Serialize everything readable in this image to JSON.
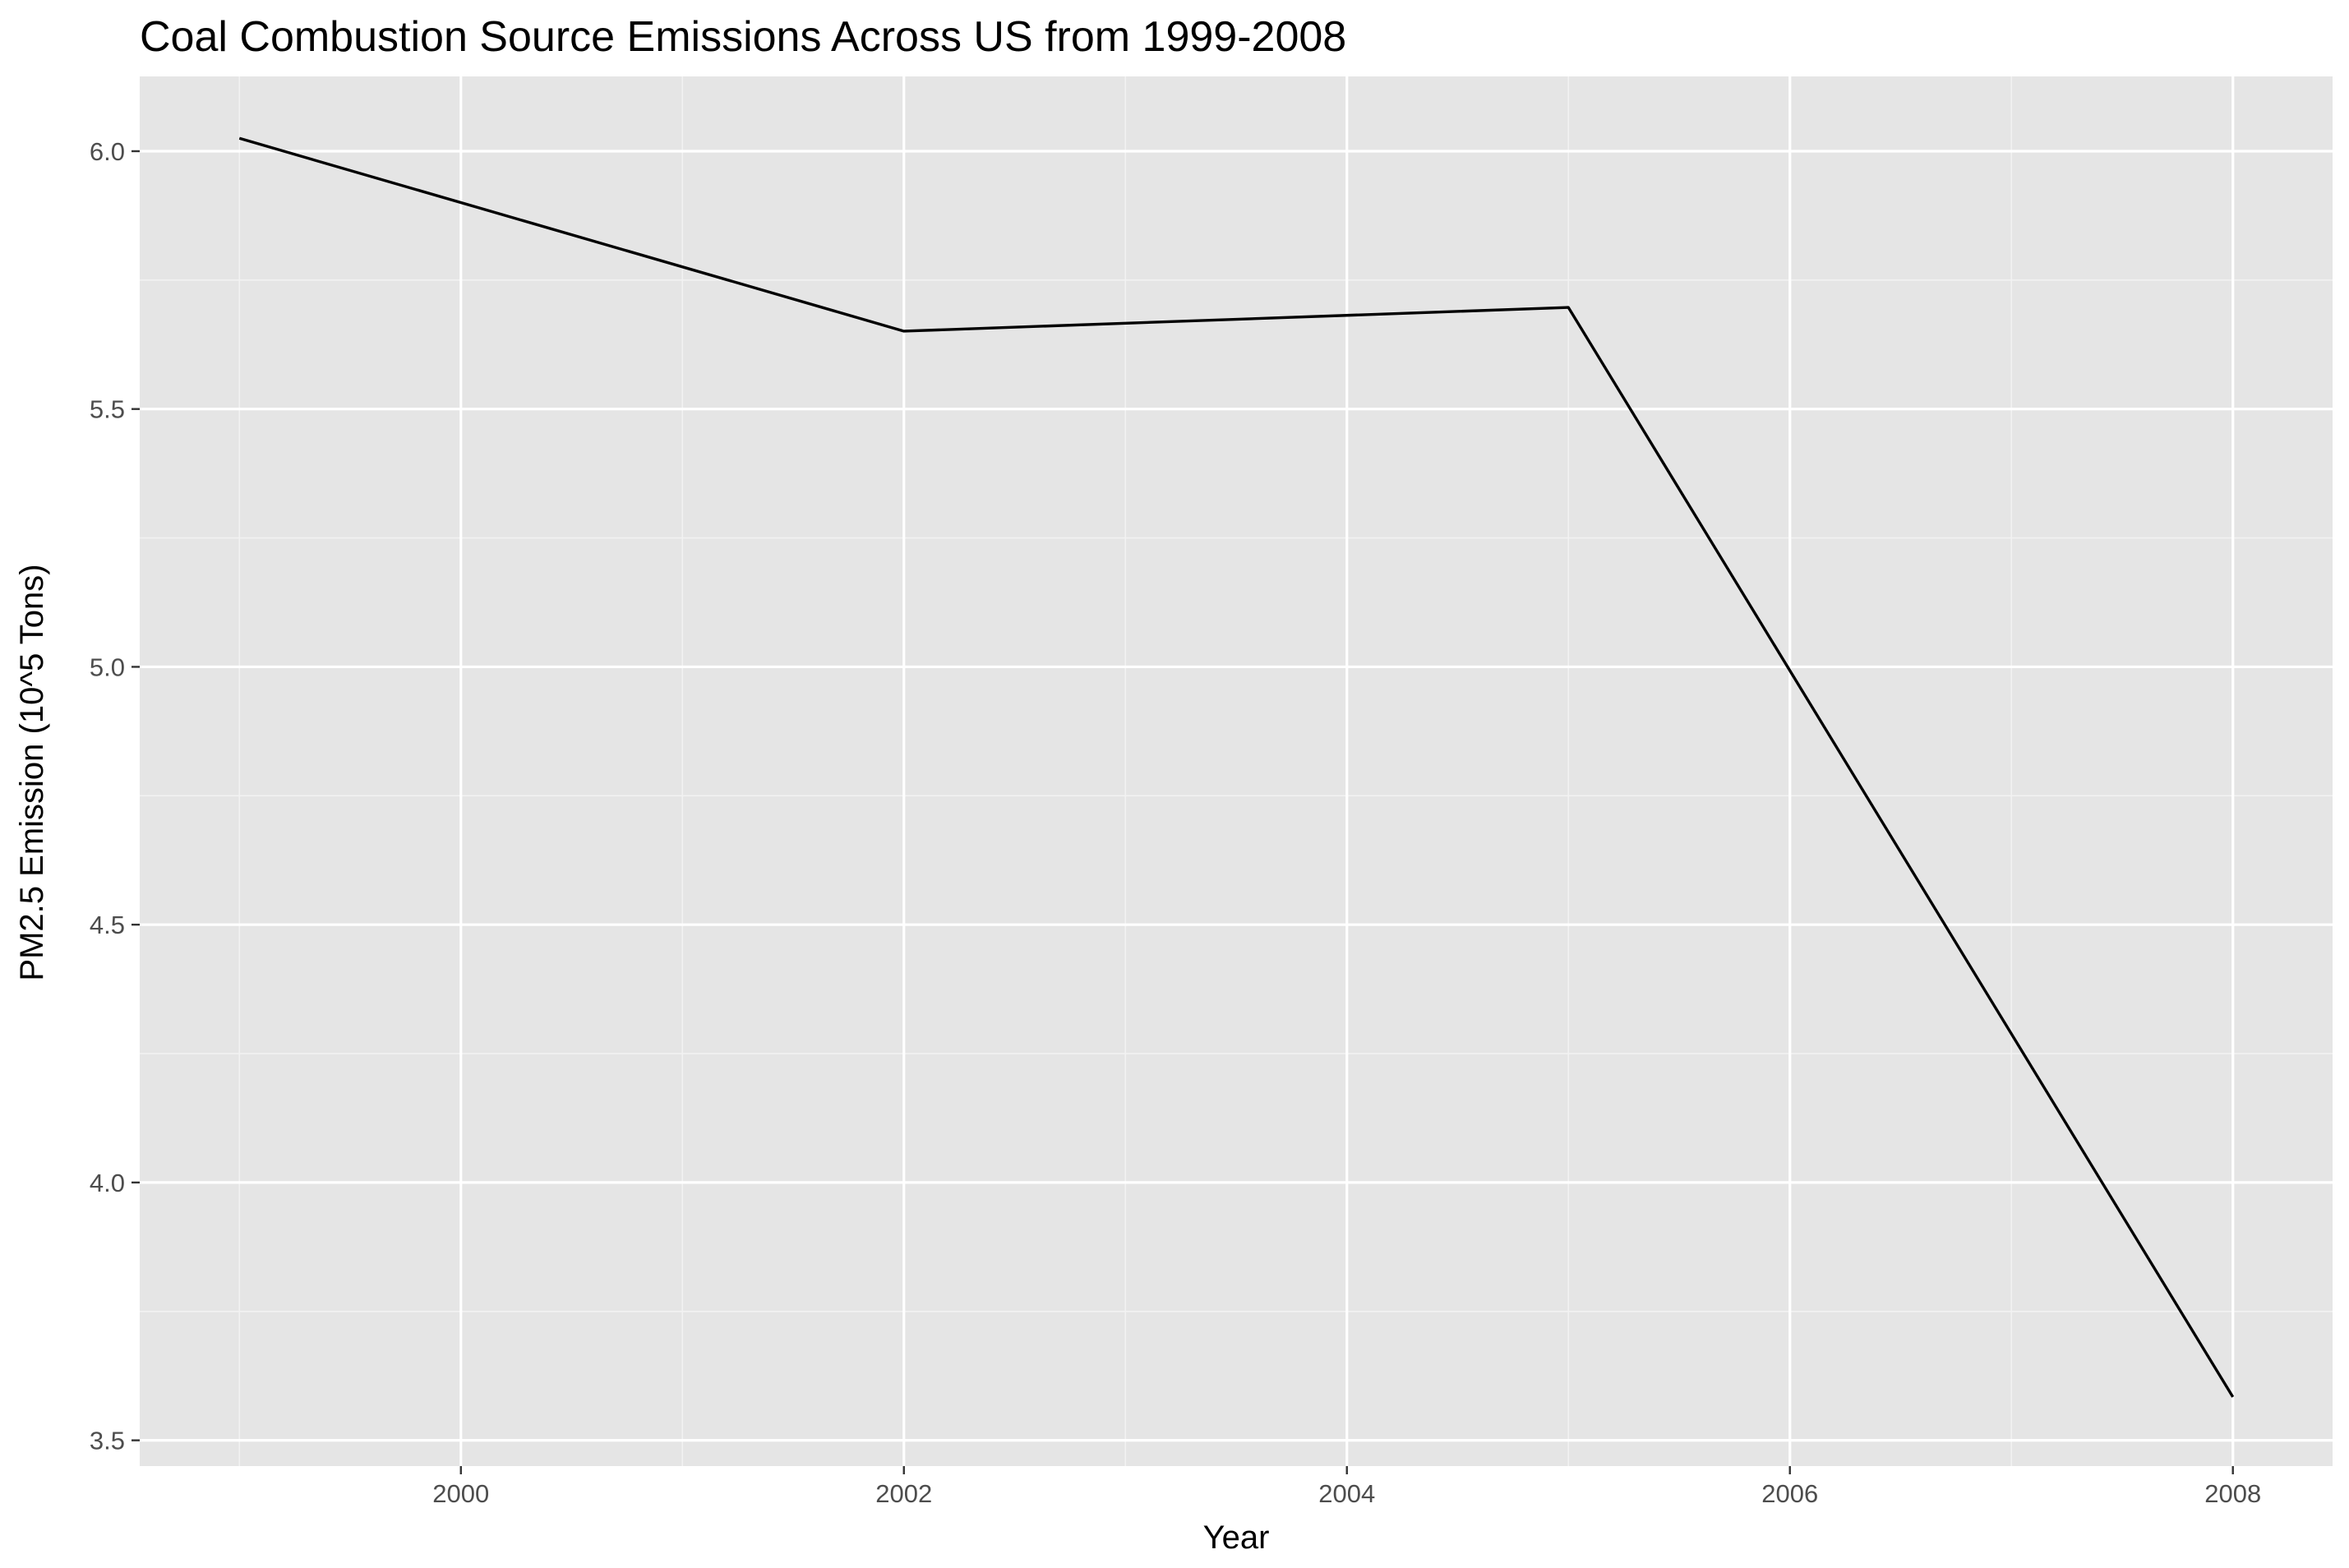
{
  "chart_data": {
    "type": "line",
    "title": "Coal Combustion Source Emissions Across US from 1999-2008",
    "xlabel": "Year",
    "ylabel": "PM2.5 Emission (10^5 Tons)",
    "x": [
      1999,
      2002,
      2005,
      2008
    ],
    "series": [
      {
        "values": [
          6.025,
          5.651,
          5.697,
          3.584
        ]
      }
    ],
    "xlim": [
      1998.55,
      2008.45
    ],
    "ylim": [
      3.45,
      6.145
    ],
    "x_ticks": [
      2000,
      2002,
      2004,
      2006,
      2008
    ],
    "x_tick_labels": [
      "2000",
      "2002",
      "2004",
      "2006",
      "2008"
    ],
    "y_ticks": [
      3.5,
      4.0,
      4.5,
      5.0,
      5.5,
      6.0
    ],
    "y_tick_labels": [
      "3.5",
      "4.0",
      "4.5",
      "5.0",
      "5.5",
      "6.0"
    ],
    "x_minor_ticks": [
      1999,
      2001,
      2003,
      2005,
      2007
    ],
    "y_minor_ticks": [
      3.75,
      4.25,
      4.75,
      5.25,
      5.75
    ],
    "grid": true,
    "legend": "none",
    "colors": {
      "panel_background": "#e5e5e5",
      "grid_major": "#ffffff",
      "grid_minor": "#f2f2f2",
      "line": "#000000",
      "tick_text": "#4d4d4d",
      "tick_mark": "#333333"
    }
  }
}
